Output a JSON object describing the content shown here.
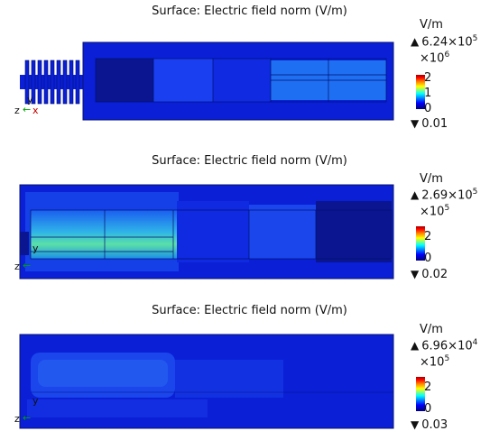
{
  "panels": [
    {
      "title": "Surface: Electric field norm (V/m)",
      "unit": "V/m",
      "max_mantissa": "6.24×10",
      "max_exp": "5",
      "multiplier_base": "×10",
      "multiplier_exp": "6",
      "ticks": [
        "2",
        "1",
        "0"
      ],
      "min": "0.01",
      "axis_z": "z",
      "axis_x": "x",
      "axis_y": "y"
    },
    {
      "title": "Surface: Electric field norm (V/m)",
      "unit": "V/m",
      "max_mantissa": "2.69×10",
      "max_exp": "5",
      "multiplier_base": "×10",
      "multiplier_exp": "5",
      "ticks": [
        "2",
        "0"
      ],
      "min": "0.02",
      "axis_z": "z",
      "axis_x": "",
      "axis_y": "y"
    },
    {
      "title": "Surface: Electric field norm (V/m)",
      "unit": "V/m",
      "max_mantissa": "6.96×10",
      "max_exp": "4",
      "multiplier_base": "×10",
      "multiplier_exp": "5",
      "ticks": [
        "2",
        "0"
      ],
      "min": "0.03",
      "axis_z": "z",
      "axis_x": "",
      "axis_y": "y"
    }
  ],
  "colors": {
    "background_field": "#0a1fd6",
    "dark_region": "#0a158f",
    "bright_region": "#1f6ff2",
    "hot_region": "#5ae0a8"
  }
}
